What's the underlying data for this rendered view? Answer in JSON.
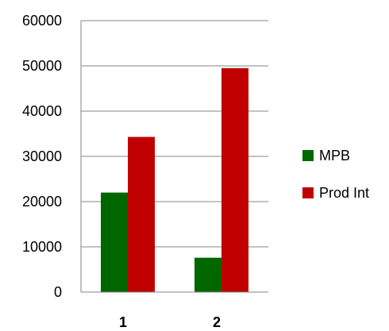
{
  "chart_data": {
    "type": "bar",
    "categories": [
      "1",
      "2"
    ],
    "series": [
      {
        "name": "MPB",
        "values": [
          22000,
          7600
        ],
        "color": "#006600"
      },
      {
        "name": "Prod Int",
        "values": [
          34300,
          49500
        ],
        "color": "#C00000"
      }
    ],
    "yticks": [
      "0",
      "10000",
      "20000",
      "30000",
      "40000",
      "50000",
      "60000"
    ],
    "ylim": [
      0,
      60000
    ],
    "grid": true,
    "legend": "right"
  }
}
